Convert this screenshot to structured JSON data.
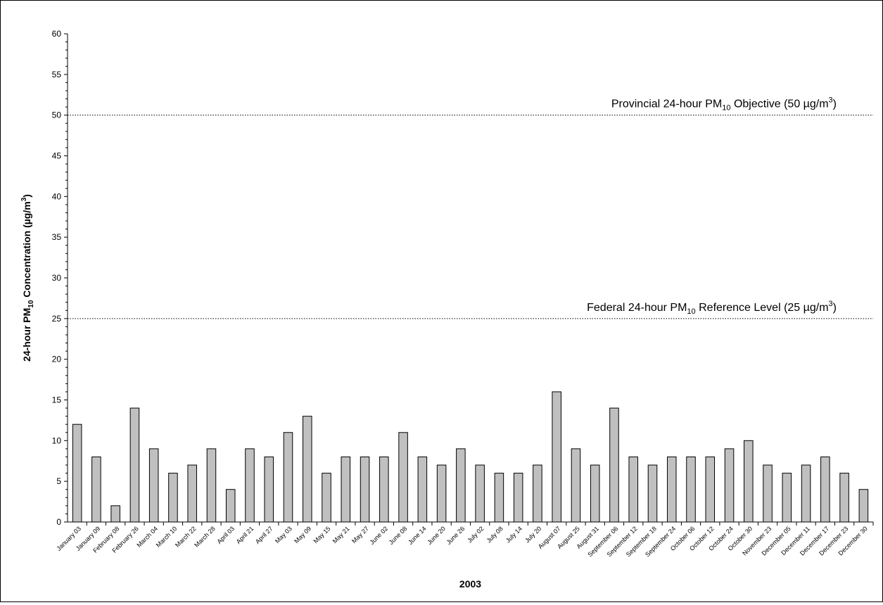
{
  "chart_data": {
    "type": "bar",
    "title": "",
    "xlabel": "2003",
    "ylabel": {
      "prefix": "24-hour PM",
      "sub": "10",
      "mid": " Concentration (µg/m",
      "sup": "3",
      "suffix": ")"
    },
    "ylim": [
      0,
      60
    ],
    "yticks": [
      0,
      5,
      10,
      15,
      20,
      25,
      30,
      35,
      40,
      45,
      50,
      55,
      60
    ],
    "grid": false,
    "bar_color": "#c0c0c0",
    "categories": [
      "January 03",
      "January 09",
      "February 08",
      "February 26",
      "March 04",
      "March 10",
      "March 22",
      "March 28",
      "April 03",
      "April 21",
      "April 27",
      "May 03",
      "May 09",
      "May 15",
      "May 21",
      "May 27",
      "June 02",
      "June 08",
      "June 14",
      "June 20",
      "June 26",
      "July 02",
      "July 08",
      "July 14",
      "July 20",
      "August 07",
      "August 25",
      "August 31",
      "September 06",
      "September 12",
      "September 18",
      "September 24",
      "October 06",
      "October 12",
      "October 24",
      "October 30",
      "November 23",
      "December 05",
      "December 11",
      "December 17",
      "December 23",
      "December 30"
    ],
    "series": [
      {
        "values": [
          12,
          8,
          2,
          14,
          9,
          6,
          7,
          9,
          4,
          9,
          8,
          11,
          13,
          6,
          8,
          8,
          8,
          11,
          8,
          7,
          9,
          7,
          6,
          6,
          7,
          16,
          9,
          7,
          14,
          8,
          7,
          8,
          8,
          8,
          9,
          10,
          7,
          6,
          7,
          8,
          6,
          4
        ]
      }
    ],
    "reference_lines": [
      {
        "value": 50,
        "style": "dotted",
        "label": {
          "prefix": "Provincial 24-hour PM",
          "sub": "10",
          "mid": " Objective (50 µg/m",
          "sup": "3",
          "suffix": ")"
        }
      },
      {
        "value": 25,
        "style": "dotted",
        "label": {
          "prefix": "Federal  24-hour PM",
          "sub": "10",
          "mid": " Reference Level (25 µg/m",
          "sup": "3",
          "suffix": ")"
        }
      }
    ]
  }
}
